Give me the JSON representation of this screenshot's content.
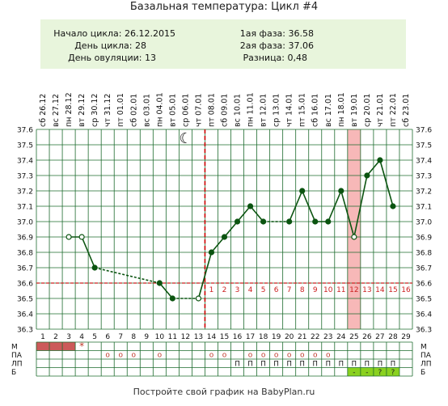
{
  "page": {
    "title": "Базальная температура: Цикл #4",
    "footer": "Постройте свой график на BabyPlan.ru"
  },
  "info": {
    "cycle_start_label": "Начало цикла:",
    "cycle_start_value": "26.12.2015",
    "cycle_day_label": "День цикла:",
    "cycle_day_value": "28",
    "ovulation_day_label": "День овуляции:",
    "ovulation_day_value": "13",
    "phase1_label": "1ая фаза:",
    "phase1_value": "36.58",
    "phase2_label": "2ая фаза:",
    "phase2_value": "37.06",
    "diff_label": "Разница:",
    "diff_value": "0,48"
  },
  "colors": {
    "grid": "#1d6b2e",
    "line": "#0b5410",
    "coverline": "#cc2222",
    "ovulation_line": "#cc0000",
    "highlight_day": "#f7b8b8",
    "menses": "#cc5a5a",
    "sex_mark": "#c0392b",
    "test_fill": "#8ad11f",
    "info_bg": "#e8f5dc"
  },
  "chart_data": {
    "type": "line",
    "days": [
      1,
      2,
      3,
      4,
      5,
      6,
      7,
      8,
      9,
      10,
      11,
      12,
      13,
      14,
      15,
      16,
      17,
      18,
      19,
      20,
      21,
      22,
      23,
      24,
      25,
      26,
      27,
      28,
      29
    ],
    "weekdays": [
      "сб",
      "вс",
      "пн",
      "вт",
      "ср",
      "чт",
      "пт",
      "сб",
      "вс",
      "пн",
      "вт",
      "ср",
      "чт",
      "пт",
      "сб",
      "вс",
      "пн",
      "вт",
      "ср",
      "чт",
      "пт",
      "сб",
      "вс",
      "пн",
      "вт",
      "ср",
      "чт",
      "пт",
      "сб"
    ],
    "dates": [
      "26.12",
      "27.12",
      "28.12",
      "29.12",
      "30.12",
      "31.12",
      "01.01",
      "02.01",
      "03.01",
      "04.01",
      "05.01",
      "06.01",
      "07.01",
      "08.01",
      "09.01",
      "10.01",
      "11.01",
      "12.01",
      "13.01",
      "14.01",
      "15.01",
      "16.01",
      "17.01",
      "18.01",
      "19.01",
      "20.01",
      "21.01",
      "22.01",
      "23.01"
    ],
    "ylim": [
      36.3,
      37.6
    ],
    "y_ticks": [
      "36.3",
      "36.4",
      "36.5",
      "36.6",
      "36.7",
      "36.8",
      "36.9",
      "37.0",
      "37.1",
      "37.2",
      "37.3",
      "37.4",
      "37.5",
      "37.6"
    ],
    "temperatures": [
      {
        "day": 3,
        "temp": 36.9,
        "hollow": true
      },
      {
        "day": 4,
        "temp": 36.9,
        "hollow": true
      },
      {
        "day": 5,
        "temp": 36.7
      },
      {
        "day": 10,
        "temp": 36.6
      },
      {
        "day": 11,
        "temp": 36.5
      },
      {
        "day": 13,
        "temp": 36.5,
        "hollow": true
      },
      {
        "day": 14,
        "temp": 36.8
      },
      {
        "day": 15,
        "temp": 36.9
      },
      {
        "day": 16,
        "temp": 37.0
      },
      {
        "day": 17,
        "temp": 37.1
      },
      {
        "day": 18,
        "temp": 37.0
      },
      {
        "day": 20,
        "temp": 37.0
      },
      {
        "day": 21,
        "temp": 37.2
      },
      {
        "day": 22,
        "temp": 37.0
      },
      {
        "day": 23,
        "temp": 37.0
      },
      {
        "day": 24,
        "temp": 37.2
      },
      {
        "day": 25,
        "temp": 36.9,
        "hollow": true
      },
      {
        "day": 26,
        "temp": 37.3
      },
      {
        "day": 27,
        "temp": 37.4
      },
      {
        "day": 28,
        "temp": 37.1
      }
    ],
    "dashed_segments": [
      [
        5,
        10
      ],
      [
        11,
        13
      ],
      [
        18,
        20
      ]
    ],
    "gap_after_day": [
      4
    ],
    "coverline_temp": 36.6,
    "ovulation_day": 13,
    "highlight_day": 25,
    "luteal_day_labels": [
      "1",
      "2",
      "3",
      "4",
      "5",
      "6",
      "7",
      "8",
      "9",
      "10",
      "11",
      "12",
      "13",
      "14",
      "15",
      "16"
    ],
    "row_labels": [
      "М",
      "ПА",
      "ЛП",
      "Б"
    ],
    "menses_days": [
      1,
      2,
      3
    ],
    "sex_star_days": [
      4
    ],
    "pa_days": [
      6,
      7,
      8,
      10,
      14,
      15,
      17,
      18,
      19,
      20,
      21,
      22,
      23
    ],
    "pa_symbol": "o",
    "lp_days": [
      16,
      17,
      18,
      19,
      20,
      21,
      22,
      23,
      24,
      25,
      26,
      27,
      28
    ],
    "lp_symbol": "П",
    "test_days": [
      {
        "day": 25,
        "mark": "-"
      },
      {
        "day": 26,
        "mark": "-"
      },
      {
        "day": 27,
        "mark": "?"
      },
      {
        "day": 28,
        "mark": "?"
      }
    ],
    "moon_symbol": "☾"
  }
}
